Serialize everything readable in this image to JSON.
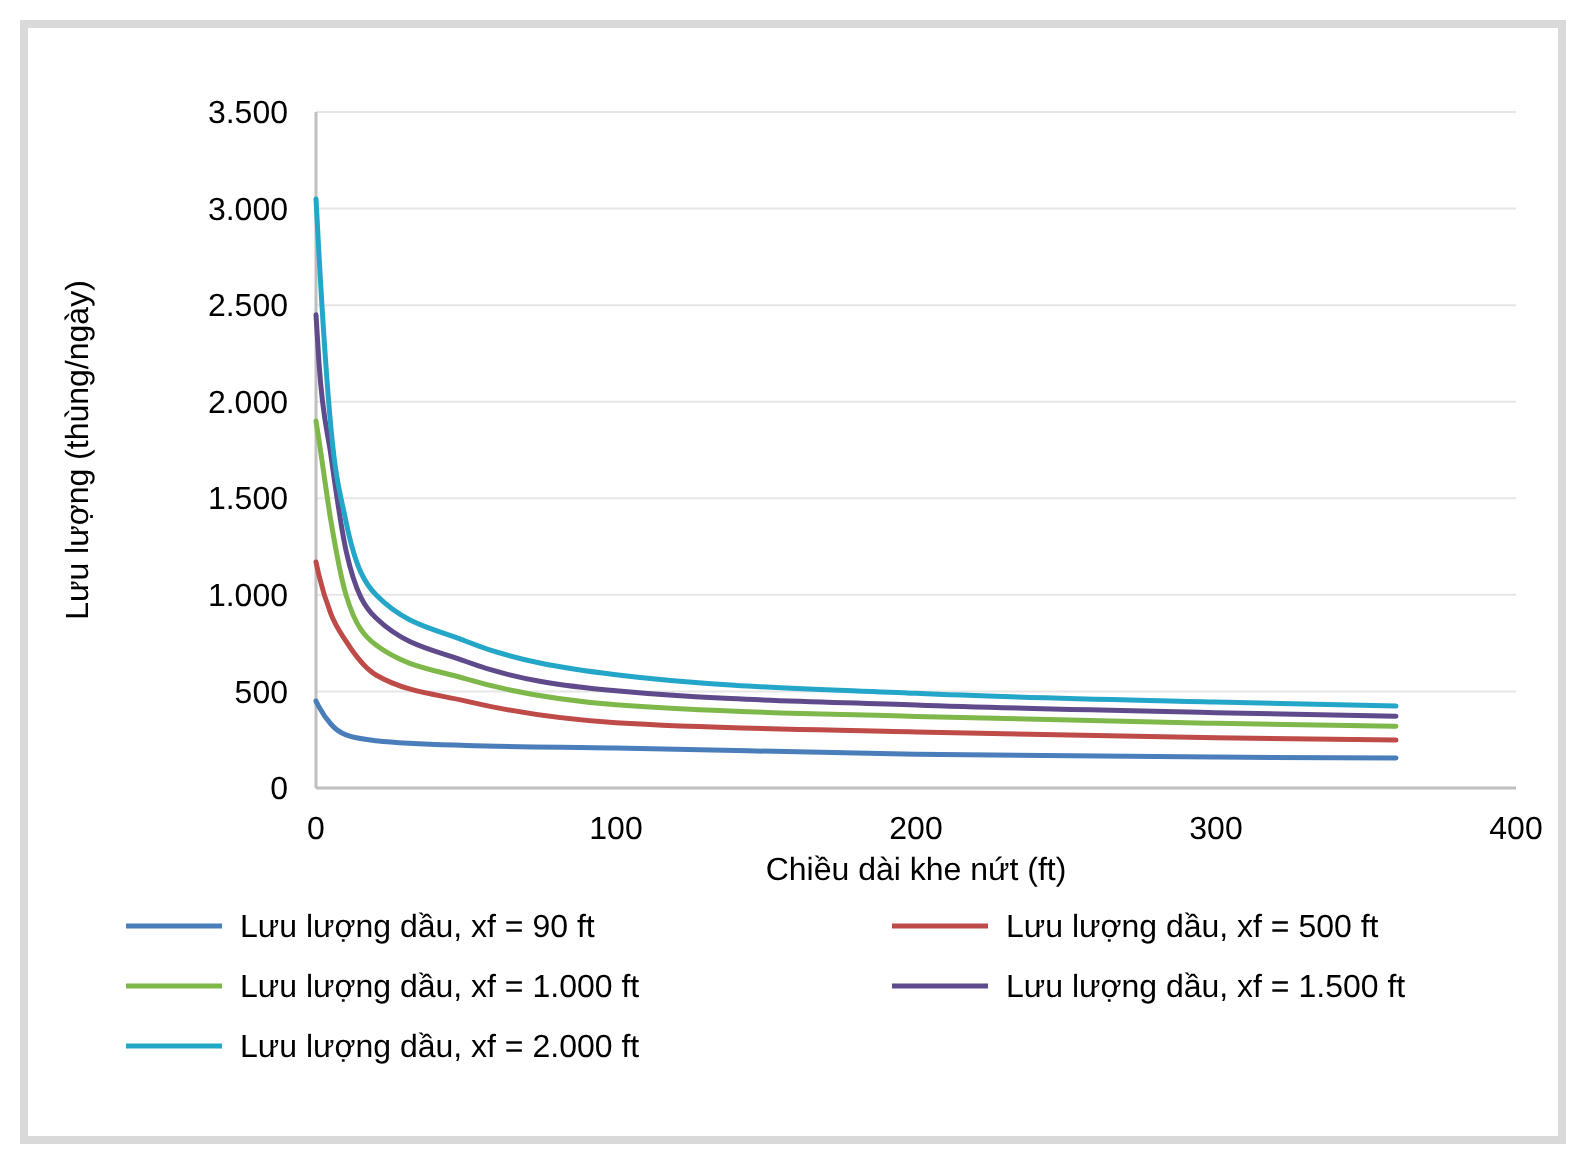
{
  "chart_data": {
    "type": "line",
    "xlabel": "Chiều dài khe nứt (ft)",
    "ylabel": "Lưu lượng (thùng/ngày)",
    "x": [
      0,
      1,
      5,
      10,
      20,
      50,
      100,
      200,
      300,
      360
    ],
    "series": [
      {
        "name": "Lưu lượng dầu, xf = 90 ft",
        "color": "#4a7ebb",
        "values": [
          450,
          420,
          330,
          275,
          245,
          220,
          207,
          175,
          160,
          155
        ]
      },
      {
        "name": "Lưu lượng dầu, xf = 500 ft",
        "color": "#be4b48",
        "values": [
          1170,
          1100,
          900,
          760,
          585,
          450,
          338,
          290,
          260,
          248
        ]
      },
      {
        "name": "Lưu lượng dầu, xf = 1.000 ft",
        "color": "#7eb84a",
        "values": [
          1900,
          1800,
          1380,
          1000,
          740,
          565,
          431,
          370,
          335,
          320
        ]
      },
      {
        "name": "Lưu lượng dầu, xf = 1.500 ft",
        "color": "#5f4b8b",
        "values": [
          2450,
          2200,
          1720,
          1230,
          880,
          655,
          503,
          430,
          390,
          372
        ]
      },
      {
        "name": "Lưu lượng dầu, xf = 2.000 ft",
        "color": "#24a6c8",
        "values": [
          3050,
          2760,
          1860,
          1380,
          1000,
          760,
          586,
          490,
          445,
          424
        ]
      }
    ],
    "xlim": [
      0,
      400
    ],
    "xticks": [
      0,
      100,
      200,
      300,
      400
    ],
    "ylim": [
      0,
      3500
    ],
    "yticks": [
      0,
      {
        "value": 500,
        "label": "500"
      },
      {
        "value": 1000,
        "label": "1.000"
      },
      {
        "value": 1500,
        "label": "1.500"
      },
      {
        "value": 2000,
        "label": "2.000"
      },
      {
        "value": 2500,
        "label": "2.500"
      },
      {
        "value": 3000,
        "label": "3.000"
      },
      {
        "value": 3500,
        "label": "3.500"
      }
    ],
    "grid": "y",
    "legend": "bottom",
    "marker": "none",
    "line_style": "solid"
  }
}
